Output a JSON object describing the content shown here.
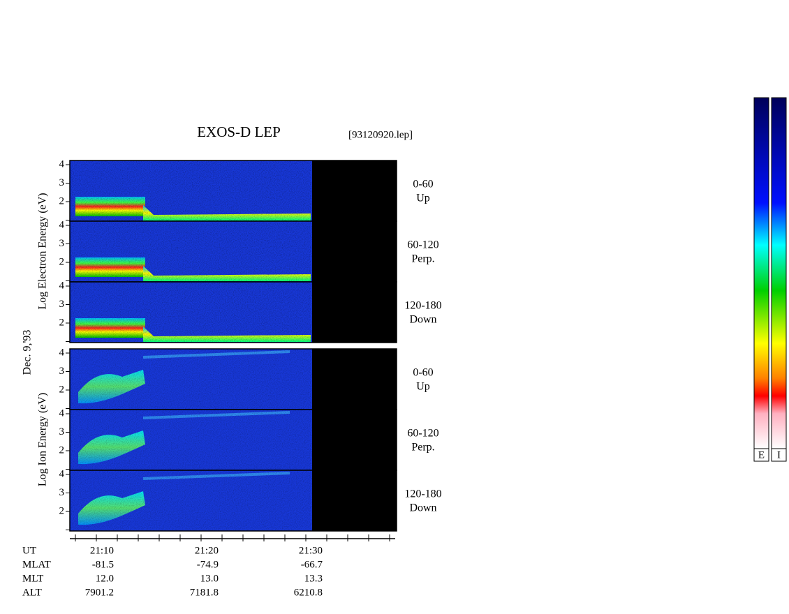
{
  "header": {
    "title": "EXOS-D LEP",
    "file": "[93120920.lep]"
  },
  "axis_labels": {
    "electron": "Log  Electron  Energy (eV)",
    "ion": "Log  Ion  Energy (eV)",
    "date": "Dec. 9,'93"
  },
  "yticks": [
    2,
    3,
    4
  ],
  "panels": [
    {
      "range": "0-60",
      "direction": "Up"
    },
    {
      "range": "60-120",
      "direction": "Perp."
    },
    {
      "range": "120-180",
      "direction": "Down"
    },
    {
      "range": "0-60",
      "direction": "Up"
    },
    {
      "range": "60-120",
      "direction": "Perp."
    },
    {
      "range": "120-180",
      "direction": "Down"
    }
  ],
  "table": {
    "rows": [
      {
        "name": "UT",
        "values": [
          "21:10",
          "21:20",
          "21:30"
        ]
      },
      {
        "name": "MLAT",
        "values": [
          "-81.5",
          "-74.9",
          "-66.7"
        ]
      },
      {
        "name": "MLT",
        "values": [
          "12.0",
          "13.0",
          "13.3"
        ]
      },
      {
        "name": "ALT",
        "values": [
          "7901.2",
          "7181.8",
          "6210.8"
        ]
      }
    ]
  },
  "colorbars": [
    "E",
    "I"
  ]
}
